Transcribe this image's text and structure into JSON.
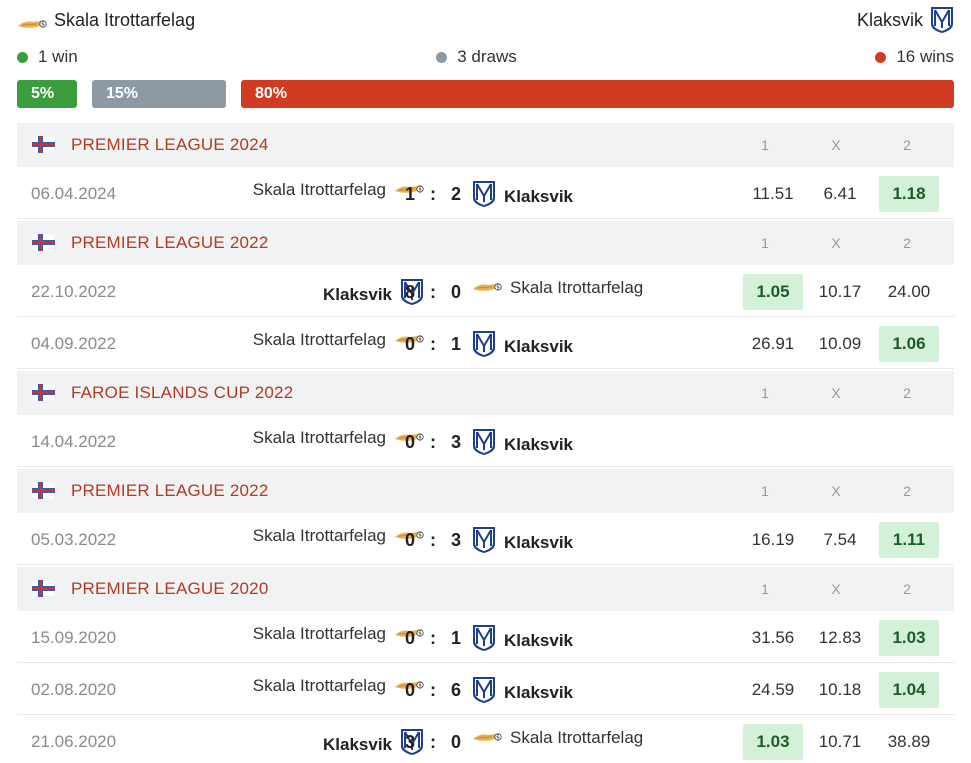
{
  "header": {
    "home_team": "Skala Itrottarfelag",
    "away_team": "Klaksvik"
  },
  "summary": {
    "home_wins_label": "1 win",
    "draws_label": "3 draws",
    "away_wins_label": "16 wins",
    "home_pct": 5,
    "draw_pct": 15,
    "away_pct": 80,
    "home_pct_label": "5%",
    "draw_pct_label": "15%",
    "away_pct_label": "80%",
    "colors": {
      "home": "#3a9e3f",
      "draw": "#8e9aa3",
      "away": "#d03b22"
    }
  },
  "odds_header": {
    "one": "1",
    "x": "X",
    "two": "2"
  },
  "groups": [
    {
      "league": "PREMIER LEAGUE 2024",
      "matches": [
        {
          "date": "06.04.2024",
          "home": "Skala Itrottarfelag",
          "home_logo": "skala",
          "home_bold": false,
          "score_home": "1",
          "sep": ":",
          "score_away": "2",
          "away": "Klaksvik",
          "away_logo": "klaksvik",
          "away_bold": true,
          "odd1": "11.51",
          "oddx": "6.41",
          "odd2": "1.18",
          "win": "2"
        }
      ]
    },
    {
      "league": "PREMIER LEAGUE 2022",
      "matches": [
        {
          "date": "22.10.2022",
          "home": "Klaksvik",
          "home_logo": "klaksvik",
          "home_bold": true,
          "score_home": "8",
          "sep": ":",
          "score_away": "0",
          "away": "Skala Itrottarfelag",
          "away_logo": "skala",
          "away_bold": false,
          "odd1": "1.05",
          "oddx": "10.17",
          "odd2": "24.00",
          "win": "1"
        },
        {
          "date": "04.09.2022",
          "home": "Skala Itrottarfelag",
          "home_logo": "skala",
          "home_bold": false,
          "score_home": "0",
          "sep": ":",
          "score_away": "1",
          "away": "Klaksvik",
          "away_logo": "klaksvik",
          "away_bold": true,
          "odd1": "26.91",
          "oddx": "10.09",
          "odd2": "1.06",
          "win": "2"
        }
      ]
    },
    {
      "league": "FAROE ISLANDS CUP 2022",
      "matches": [
        {
          "date": "14.04.2022",
          "home": "Skala Itrottarfelag",
          "home_logo": "skala",
          "home_bold": false,
          "score_home": "0",
          "sep": ":",
          "score_away": "3",
          "away": "Klaksvik",
          "away_logo": "klaksvik",
          "away_bold": true,
          "odd1": "",
          "oddx": "",
          "odd2": "",
          "win": ""
        }
      ]
    },
    {
      "league": "PREMIER LEAGUE 2022",
      "matches": [
        {
          "date": "05.03.2022",
          "home": "Skala Itrottarfelag",
          "home_logo": "skala",
          "home_bold": false,
          "score_home": "0",
          "sep": ":",
          "score_away": "3",
          "away": "Klaksvik",
          "away_logo": "klaksvik",
          "away_bold": true,
          "odd1": "16.19",
          "oddx": "7.54",
          "odd2": "1.11",
          "win": "2"
        }
      ]
    },
    {
      "league": "PREMIER LEAGUE 2020",
      "matches": [
        {
          "date": "15.09.2020",
          "home": "Skala Itrottarfelag",
          "home_logo": "skala",
          "home_bold": false,
          "score_home": "0",
          "sep": ":",
          "score_away": "1",
          "away": "Klaksvik",
          "away_logo": "klaksvik",
          "away_bold": true,
          "odd1": "31.56",
          "oddx": "12.83",
          "odd2": "1.03",
          "win": "2"
        },
        {
          "date": "02.08.2020",
          "home": "Skala Itrottarfelag",
          "home_logo": "skala",
          "home_bold": false,
          "score_home": "0",
          "sep": ":",
          "score_away": "6",
          "away": "Klaksvik",
          "away_logo": "klaksvik",
          "away_bold": true,
          "odd1": "24.59",
          "oddx": "10.18",
          "odd2": "1.04",
          "win": "2"
        },
        {
          "date": "21.06.2020",
          "home": "Klaksvik",
          "home_logo": "klaksvik",
          "home_bold": true,
          "score_home": "3",
          "sep": ":",
          "score_away": "0",
          "away": "Skala Itrottarfelag",
          "away_logo": "skala",
          "away_bold": false,
          "odd1": "1.03",
          "oddx": "10.71",
          "odd2": "38.89",
          "win": "1"
        }
      ]
    }
  ]
}
